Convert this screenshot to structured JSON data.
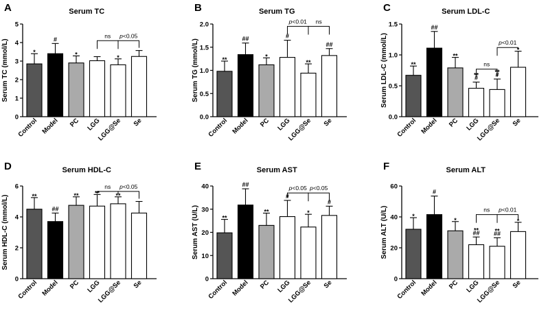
{
  "chart_data": [
    {
      "panel": "A",
      "type": "bar",
      "title": "Serum TC",
      "ylabel": "Serum TC (mmol/L)",
      "categories": [
        "Control",
        "Model",
        "PC",
        "LGG",
        "LGG@Se",
        "Se"
      ],
      "values": [
        2.85,
        3.4,
        2.9,
        3.02,
        2.8,
        3.25
      ],
      "errors": [
        0.55,
        0.55,
        0.38,
        0.22,
        0.32,
        0.32
      ],
      "ylim": [
        0,
        5
      ],
      "yticks": [
        "0",
        "1",
        "2",
        "3",
        "4",
        "5"
      ],
      "fills": [
        "#555555",
        "#000000",
        "#aaaaaa",
        "#ffffff",
        "#ffffff",
        "#ffffff"
      ],
      "annotations": [
        [
          "*"
        ],
        [
          "#"
        ],
        [
          "*"
        ],
        [],
        [
          "*"
        ],
        []
      ],
      "brackets": [
        {
          "from": 3,
          "to": 4,
          "label": "ns",
          "y": 4.1
        },
        {
          "from": 4,
          "to": 5,
          "label": "p<0.05",
          "y": 4.1
        }
      ]
    },
    {
      "panel": "B",
      "type": "bar",
      "title": "Serum TG",
      "ylabel": "Serum TG (mmol/L)",
      "categories": [
        "Control",
        "Model",
        "PC",
        "LGG",
        "LGG@Se",
        "Se"
      ],
      "values": [
        0.98,
        1.34,
        1.12,
        1.28,
        0.94,
        1.32
      ],
      "errors": [
        0.22,
        0.25,
        0.15,
        0.37,
        0.2,
        0.15
      ],
      "ylim": [
        0,
        2.0
      ],
      "yticks": [
        "0.0",
        "0.5",
        "1.0",
        "1.5",
        "2.0"
      ],
      "fills": [
        "#555555",
        "#000000",
        "#aaaaaa",
        "#ffffff",
        "#ffffff",
        "#ffffff"
      ],
      "annotations": [
        [
          "**"
        ],
        [
          "##"
        ],
        [
          "*"
        ],
        [
          "#"
        ],
        [
          "**"
        ],
        [
          "##"
        ]
      ],
      "brackets": [
        {
          "from": 3,
          "to": 4,
          "label": "p<0.01",
          "y": 1.95
        },
        {
          "from": 4,
          "to": 5,
          "label": "ns",
          "y": 1.95
        }
      ]
    },
    {
      "panel": "C",
      "type": "bar",
      "title": "Serum LDL-C",
      "ylabel": "Serum LDL-C (mmol/L)",
      "categories": [
        "Control",
        "Model",
        "PC",
        "LGG",
        "LGG@Se",
        "Se"
      ],
      "values": [
        0.67,
        1.11,
        0.79,
        0.46,
        0.44,
        0.8
      ],
      "errors": [
        0.15,
        0.27,
        0.17,
        0.1,
        0.17,
        0.26
      ],
      "ylim": [
        0,
        1.5
      ],
      "yticks": [
        "0.0",
        "0.5",
        "1.0",
        "1.5"
      ],
      "fills": [
        "#555555",
        "#000000",
        "#aaaaaa",
        "#ffffff",
        "#ffffff",
        "#ffffff"
      ],
      "annotations": [
        [
          "**"
        ],
        [
          "##"
        ],
        [
          "**"
        ],
        [
          "#",
          "**"
        ],
        [
          "#",
          "**"
        ],
        [
          "*"
        ]
      ],
      "brackets": [
        {
          "from": 3,
          "to": 4,
          "label": "ns",
          "y": 0.77
        },
        {
          "from": 4,
          "to": 5,
          "label": "p<0.01",
          "y": 1.12
        }
      ]
    },
    {
      "panel": "D",
      "type": "bar",
      "title": "Serum HDL-C",
      "ylabel": "Serum HDL-C (mmol/L)",
      "categories": [
        "Control",
        "Model",
        "PC",
        "LGG",
        "LGG@Se",
        "Se"
      ],
      "values": [
        4.5,
        3.7,
        4.75,
        4.7,
        4.85,
        4.25
      ],
      "errors": [
        0.75,
        0.55,
        0.55,
        0.75,
        0.45,
        0.75
      ],
      "ylim": [
        0,
        6
      ],
      "yticks": [
        "0",
        "2",
        "4",
        "6"
      ],
      "fills": [
        "#555555",
        "#000000",
        "#aaaaaa",
        "#ffffff",
        "#ffffff",
        "#ffffff"
      ],
      "annotations": [
        [
          "**"
        ],
        [
          "##"
        ],
        [
          "**"
        ],
        [
          "**"
        ],
        [
          "**"
        ],
        []
      ],
      "brackets": [
        {
          "from": 3,
          "to": 4,
          "label": "ns",
          "y": 5.65
        },
        {
          "from": 4,
          "to": 5,
          "label": "p<0.05",
          "y": 5.65
        }
      ]
    },
    {
      "panel": "E",
      "type": "bar",
      "title": "Serum AST",
      "ylabel": "Serum AST (U/L)",
      "categories": [
        "Control",
        "Model",
        "PC",
        "LGG",
        "LGG@Se",
        "Se"
      ],
      "values": [
        19.8,
        31.8,
        23.0,
        26.8,
        22.3,
        27.3
      ],
      "errors": [
        5.8,
        7.0,
        5.3,
        7.0,
        5.5,
        4.0
      ],
      "ylim": [
        0,
        40
      ],
      "yticks": [
        "0",
        "10",
        "20",
        "30",
        "40"
      ],
      "fills": [
        "#555555",
        "#000000",
        "#aaaaaa",
        "#ffffff",
        "#ffffff",
        "#ffffff"
      ],
      "annotations": [
        [
          "**"
        ],
        [
          "##"
        ],
        [
          "**"
        ],
        [
          "#"
        ],
        [
          "*"
        ],
        [
          "#"
        ]
      ],
      "brackets": [
        {
          "from": 3,
          "to": 4,
          "label": "p<0.05",
          "y": 37.0
        },
        {
          "from": 4,
          "to": 5,
          "label": "p<0.05",
          "y": 37.0
        }
      ]
    },
    {
      "panel": "F",
      "type": "bar",
      "title": "Serum ALT",
      "ylabel": "Serum ALT (U/L)",
      "categories": [
        "Control",
        "Model",
        "PC",
        "LGG",
        "LGG@Se",
        "Se"
      ],
      "values": [
        32,
        41.5,
        31,
        22,
        21,
        30.5
      ],
      "errors": [
        7.5,
        12,
        6,
        5,
        5.5,
        6
      ],
      "ylim": [
        0,
        60
      ],
      "yticks": [
        "0",
        "20",
        "40",
        "60"
      ],
      "fills": [
        "#555555",
        "#000000",
        "#aaaaaa",
        "#ffffff",
        "#ffffff",
        "#ffffff"
      ],
      "annotations": [
        [
          "*"
        ],
        [
          "#"
        ],
        [
          "*"
        ],
        [
          "##",
          "**"
        ],
        [
          "##",
          "**"
        ],
        [
          "*"
        ]
      ],
      "brackets": [
        {
          "from": 3,
          "to": 4,
          "label": "ns",
          "y": 41.5
        },
        {
          "from": 4,
          "to": 5,
          "label": "p<0.01",
          "y": 41.5
        }
      ]
    }
  ]
}
